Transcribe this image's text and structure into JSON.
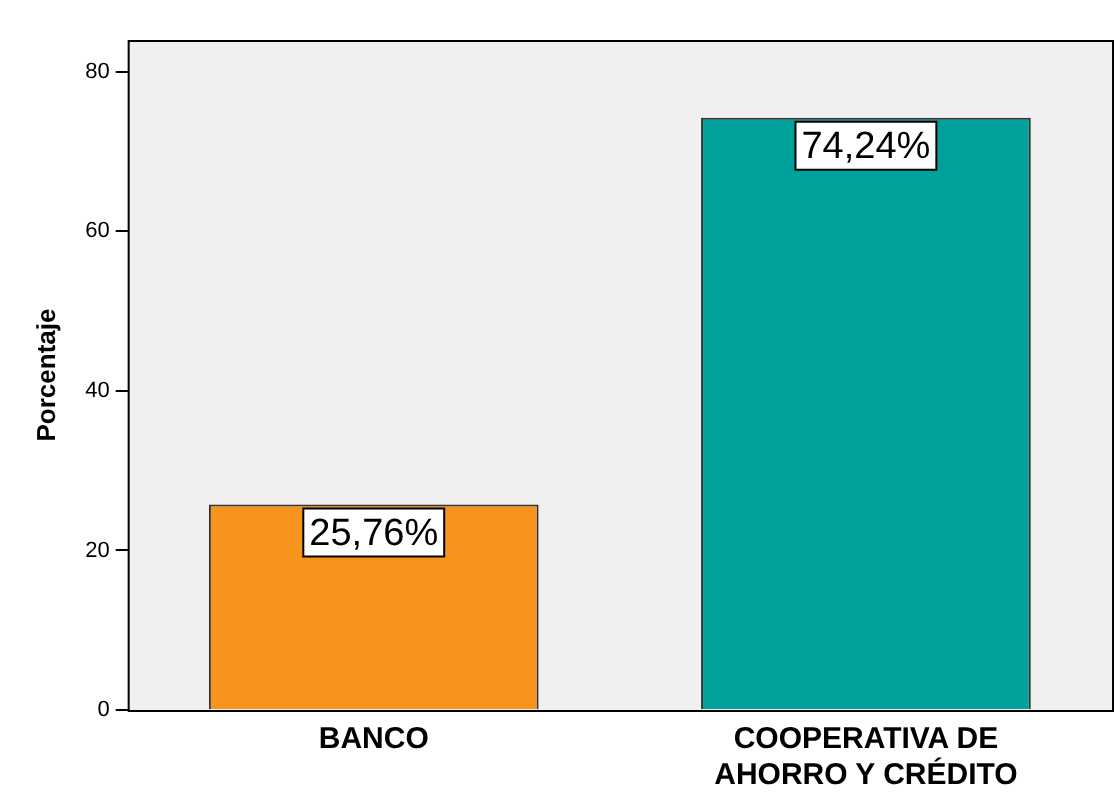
{
  "chart_data": {
    "type": "bar",
    "ylabel": "Porcentaje",
    "categories": [
      "BANCO",
      "COOPERATIVA DE AHORRO Y CRÉDITO"
    ],
    "values": [
      25.76,
      74.24
    ],
    "colors": [
      "#f7941d",
      "#00a19a"
    ],
    "value_labels": [
      "25,76%",
      "74,24%"
    ],
    "ylim": [
      0,
      84
    ],
    "yticks": [
      0,
      20,
      40,
      60,
      80
    ],
    "grid": false,
    "legend": false
  }
}
